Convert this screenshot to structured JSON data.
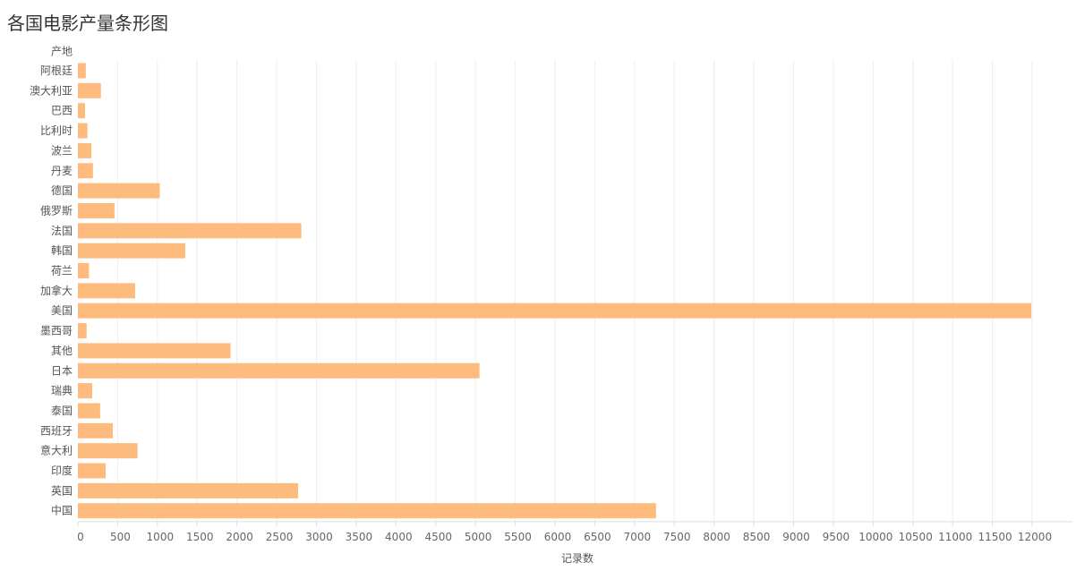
{
  "chart_data": {
    "type": "bar",
    "orientation": "horizontal",
    "title": "各国电影产量条形图",
    "ylabel": "产地",
    "xlabel": "记录数",
    "categories": [
      "阿根廷",
      "澳大利亚",
      "巴西",
      "比利时",
      "波兰",
      "丹麦",
      "德国",
      "俄罗斯",
      "法国",
      "韩国",
      "荷兰",
      "加拿大",
      "美国",
      "墨西哥",
      "其他",
      "日本",
      "瑞典",
      "泰国",
      "西班牙",
      "意大利",
      "印度",
      "英国",
      "中国"
    ],
    "values": [
      100,
      290,
      90,
      120,
      170,
      190,
      1030,
      460,
      2810,
      1350,
      140,
      720,
      11990,
      110,
      1920,
      5050,
      180,
      280,
      440,
      750,
      350,
      2770,
      7270
    ],
    "xlim": [
      0,
      12000
    ],
    "xticks": [
      0,
      500,
      1000,
      1500,
      2000,
      2500,
      3000,
      3500,
      4000,
      4500,
      5000,
      5500,
      6000,
      6500,
      7000,
      7500,
      8000,
      8500,
      9000,
      9500,
      10000,
      10500,
      11000,
      11500,
      12000
    ],
    "grid": true,
    "legend": "none",
    "bar_color": "#fdbc7d",
    "grid_color": "#eeeeee",
    "axis_color": "#dddddd",
    "text_color": "#555555"
  }
}
